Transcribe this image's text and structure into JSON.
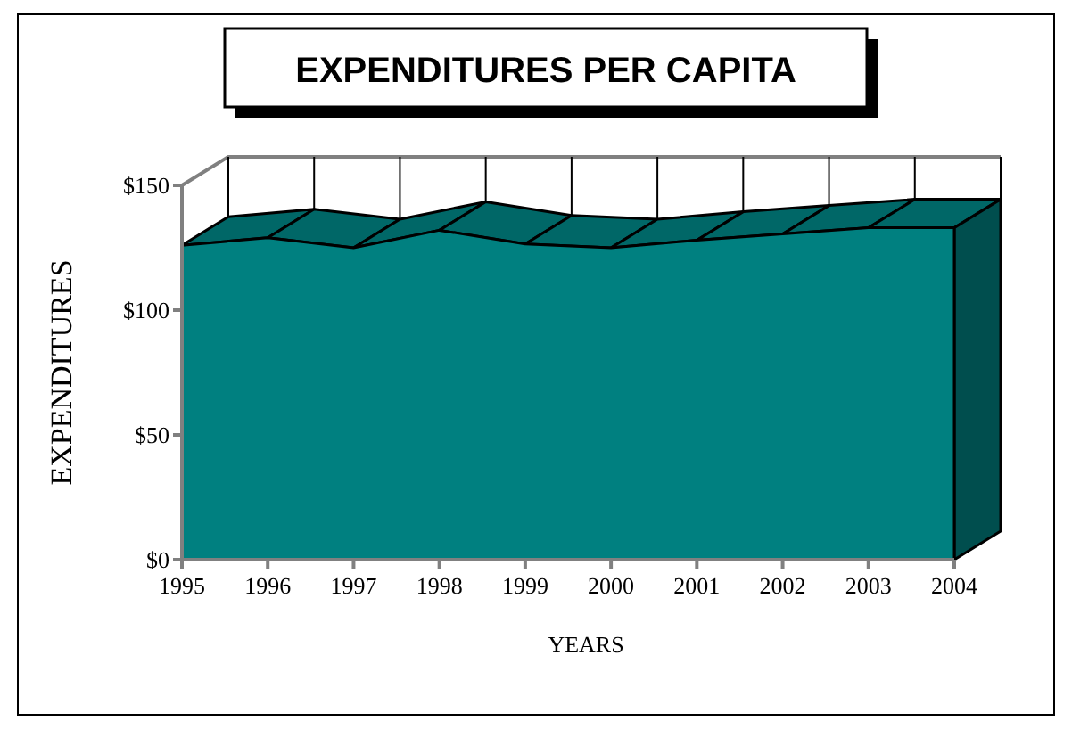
{
  "chart_data": {
    "type": "area",
    "title": "EXPENDITURES PER CAPITA",
    "xlabel": "YEARS",
    "ylabel": "EXPENDITURES",
    "categories": [
      "1995",
      "1996",
      "1997",
      "1998",
      "1999",
      "2000",
      "2001",
      "2002",
      "2003",
      "2004"
    ],
    "series": [
      {
        "color": "#008080",
        "values": [
          126,
          129,
          125,
          132,
          126.5,
          125,
          128,
          130.5,
          133,
          133
        ]
      }
    ],
    "ylim": [
      0,
      150
    ],
    "yticks": [
      {
        "value": 0,
        "label": "$0"
      },
      {
        "value": 50,
        "label": "$50"
      },
      {
        "value": 100,
        "label": "$100"
      },
      {
        "value": 150,
        "label": "$150"
      }
    ],
    "grid": "x"
  }
}
